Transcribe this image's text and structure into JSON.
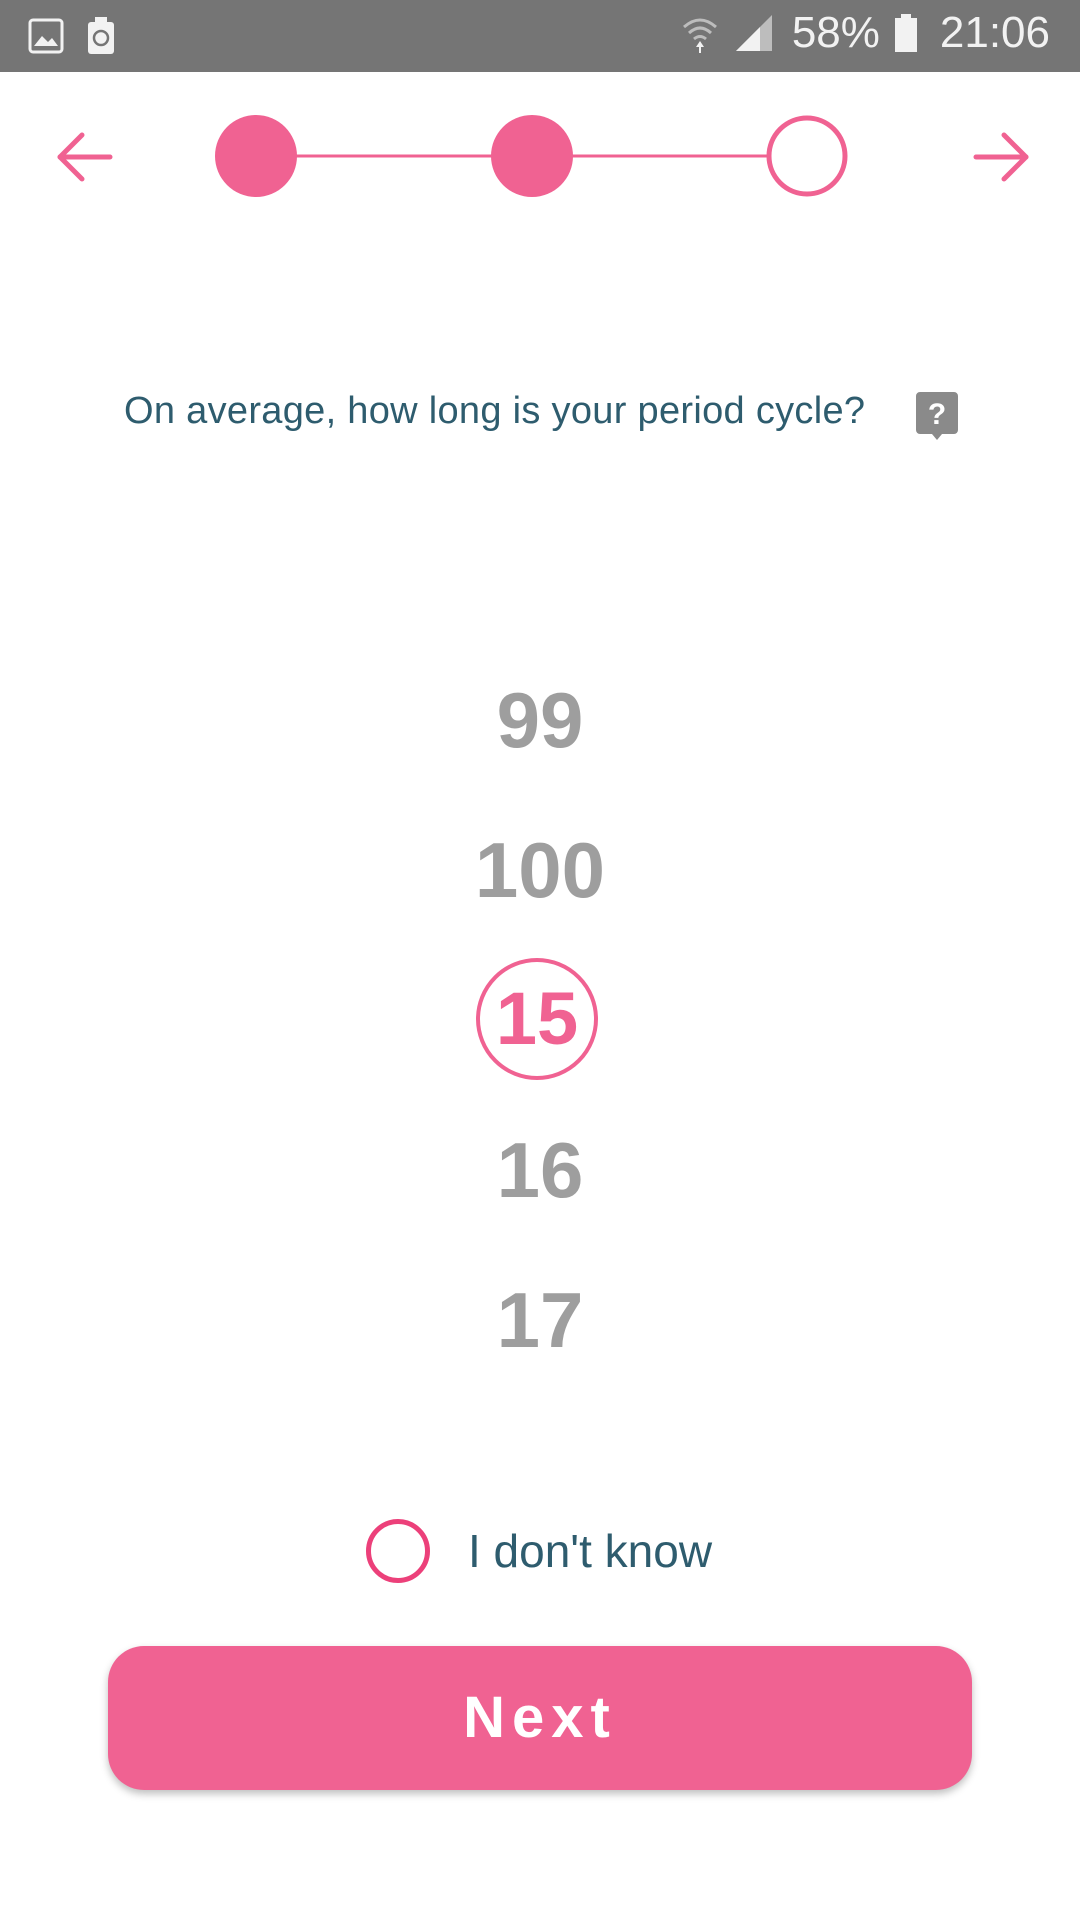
{
  "status_bar": {
    "battery_percent": "58%",
    "time": "21:06",
    "icons": [
      "gallery-icon",
      "battery-saver-icon",
      "wifi-icon",
      "signal-icon",
      "battery-icon"
    ]
  },
  "stepper": {
    "steps": [
      {
        "state": "completed"
      },
      {
        "state": "completed"
      },
      {
        "state": "current"
      }
    ],
    "accent_color": "#f06292"
  },
  "question": {
    "text": "On average, how long is your period cycle?"
  },
  "picker": {
    "visible_values": [
      "99",
      "100",
      "15",
      "16",
      "17"
    ],
    "selected_value": "15"
  },
  "dont_know": {
    "label": "I don't know",
    "checked": false
  },
  "next_button": {
    "label": "Next"
  },
  "colors": {
    "accent": "#f06292",
    "text_primary": "#2e5c6e",
    "picker_inactive": "#9e9e9e",
    "status_bar": "#757575"
  }
}
